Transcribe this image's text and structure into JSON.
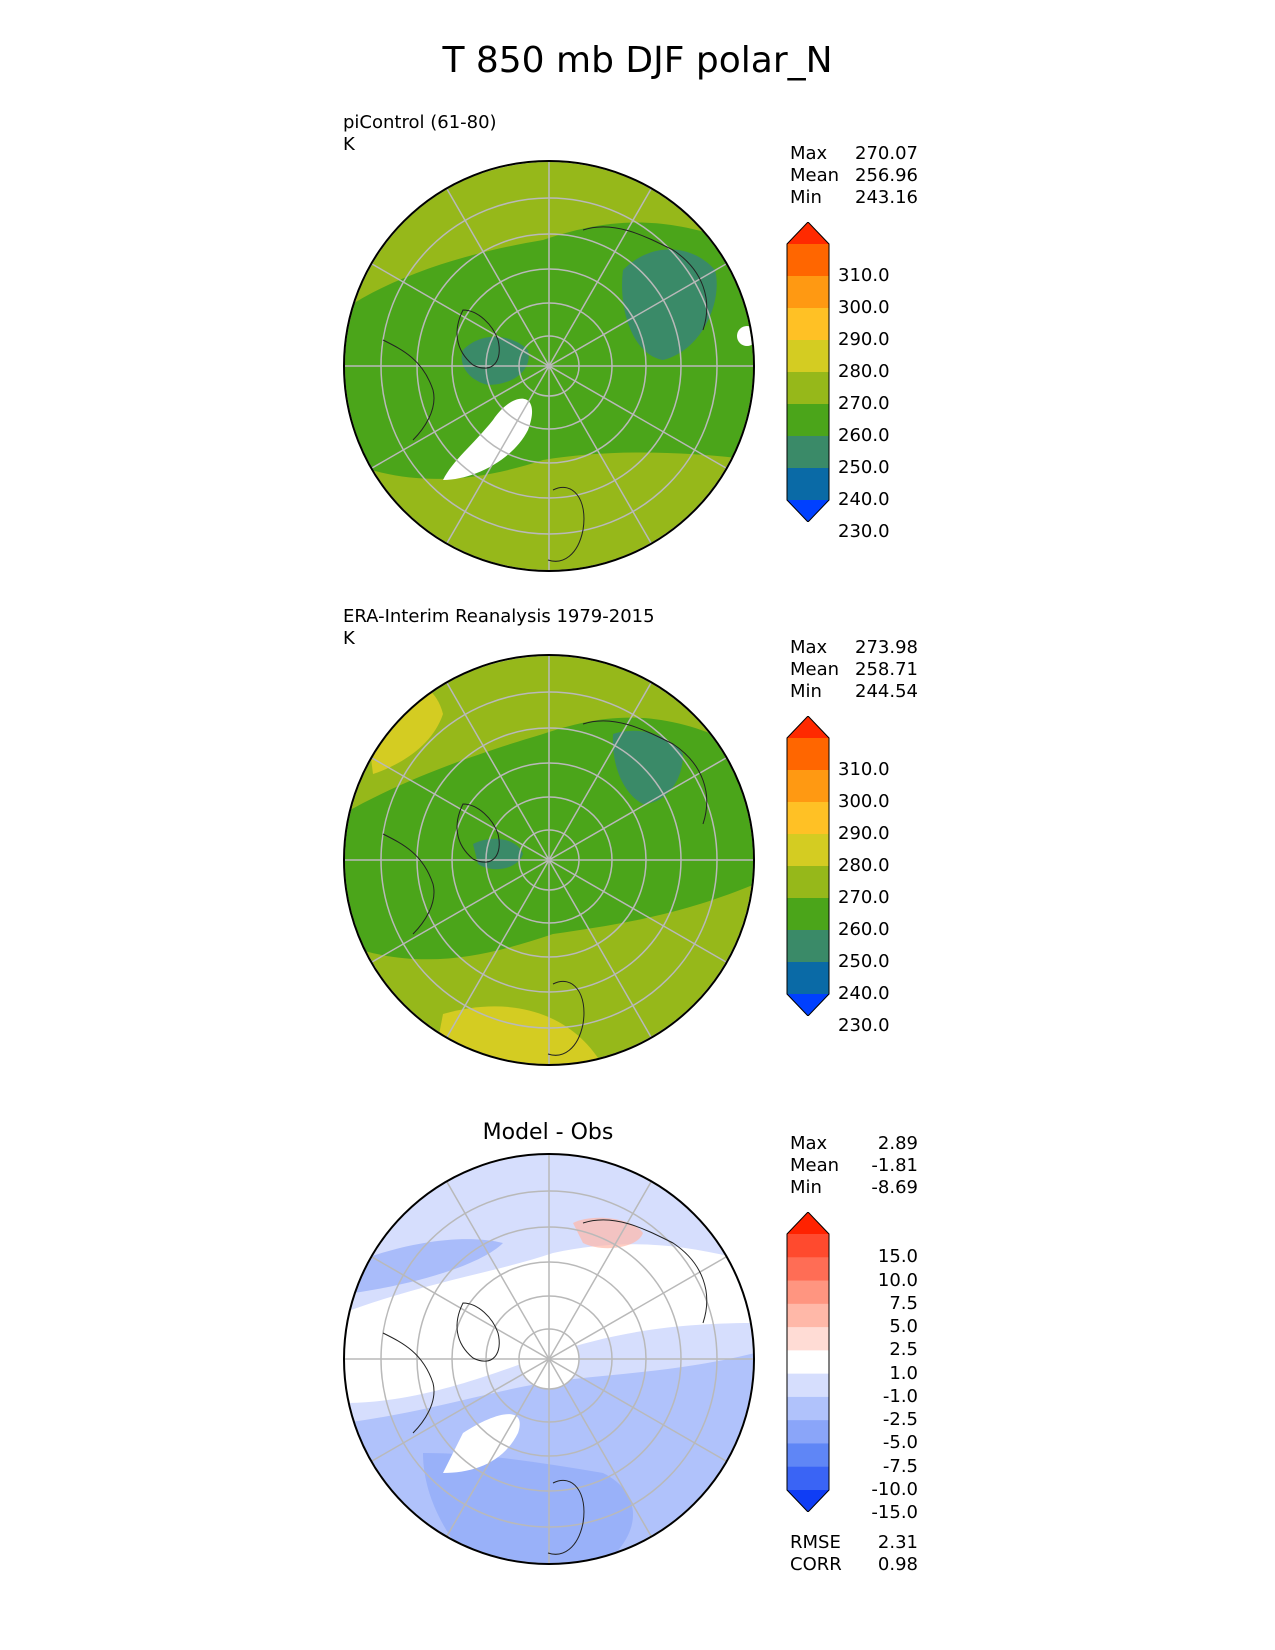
{
  "title": "T 850 mb DJF polar_N",
  "panels": [
    {
      "title_line1": "piControl (61-80)",
      "title_line2": "K",
      "stats": [
        {
          "label": "Max",
          "value": "270.07"
        },
        {
          "label": "Mean",
          "value": "256.96"
        },
        {
          "label": "Min",
          "value": "243.16"
        }
      ]
    },
    {
      "title_line1": "ERA-Interim Reanalysis 1979-2015",
      "title_line2": "K",
      "stats": [
        {
          "label": "Max",
          "value": "273.98"
        },
        {
          "label": "Mean",
          "value": "258.71"
        },
        {
          "label": "Min",
          "value": "244.54"
        }
      ]
    },
    {
      "title_line1": "Model - Obs",
      "stats": [
        {
          "label": "Max",
          "value": "2.89"
        },
        {
          "label": "Mean",
          "value": "-1.81"
        },
        {
          "label": "Min",
          "value": "-8.69"
        }
      ],
      "extra_stats": [
        {
          "label": "RMSE",
          "value": "2.31"
        },
        {
          "label": "CORR",
          "value": "0.98"
        }
      ]
    }
  ],
  "colorbars": {
    "absolute": {
      "colors_top_to_bottom": [
        "#ff2a00",
        "#ff6600",
        "#ff9912",
        "#ffc125",
        "#d4cc22",
        "#96b81a",
        "#4ba51a",
        "#3a8a68",
        "#0a6aa6",
        "#0040ff"
      ],
      "ticks": [
        "310.0",
        "300.0",
        "290.0",
        "280.0",
        "270.0",
        "260.0",
        "250.0",
        "240.0",
        "230.0"
      ]
    },
    "difference": {
      "colors_top_to_bottom": [
        "#ff2200",
        "#ff4a2e",
        "#ff6d55",
        "#ff9580",
        "#ffb8a8",
        "#ffdcd5",
        "#ffffff",
        "#d6defd",
        "#b0c2fb",
        "#8aa5f9",
        "#5f86f6",
        "#3a64f5",
        "#0f3df5"
      ],
      "ticks": [
        "15.0",
        "10.0",
        "7.5",
        "5.0",
        "2.5",
        "1.0",
        "-1.0",
        "-2.5",
        "-5.0",
        "-7.5",
        "-10.0",
        "-15.0"
      ]
    }
  },
  "chart_data": [
    {
      "type": "heatmap",
      "title": "piControl (61-80)",
      "units": "K",
      "projection": "north polar stereographic",
      "colorbar_ticks": [
        310,
        300,
        290,
        280,
        270,
        260,
        250,
        240,
        230
      ],
      "max": 270.07,
      "mean": 256.96,
      "min": 243.16
    },
    {
      "type": "heatmap",
      "title": "ERA-Interim Reanalysis 1979-2015",
      "units": "K",
      "projection": "north polar stereographic",
      "colorbar_ticks": [
        310,
        300,
        290,
        280,
        270,
        260,
        250,
        240,
        230
      ],
      "max": 273.98,
      "mean": 258.71,
      "min": 244.54
    },
    {
      "type": "heatmap",
      "title": "Model - Obs",
      "projection": "north polar stereographic",
      "colorbar_ticks": [
        15,
        10,
        7.5,
        5,
        2.5,
        1,
        -1,
        -2.5,
        -5,
        -7.5,
        -10,
        -15
      ],
      "max": 2.89,
      "mean": -1.81,
      "min": -8.69,
      "rmse": 2.31,
      "corr": 0.98
    }
  ]
}
